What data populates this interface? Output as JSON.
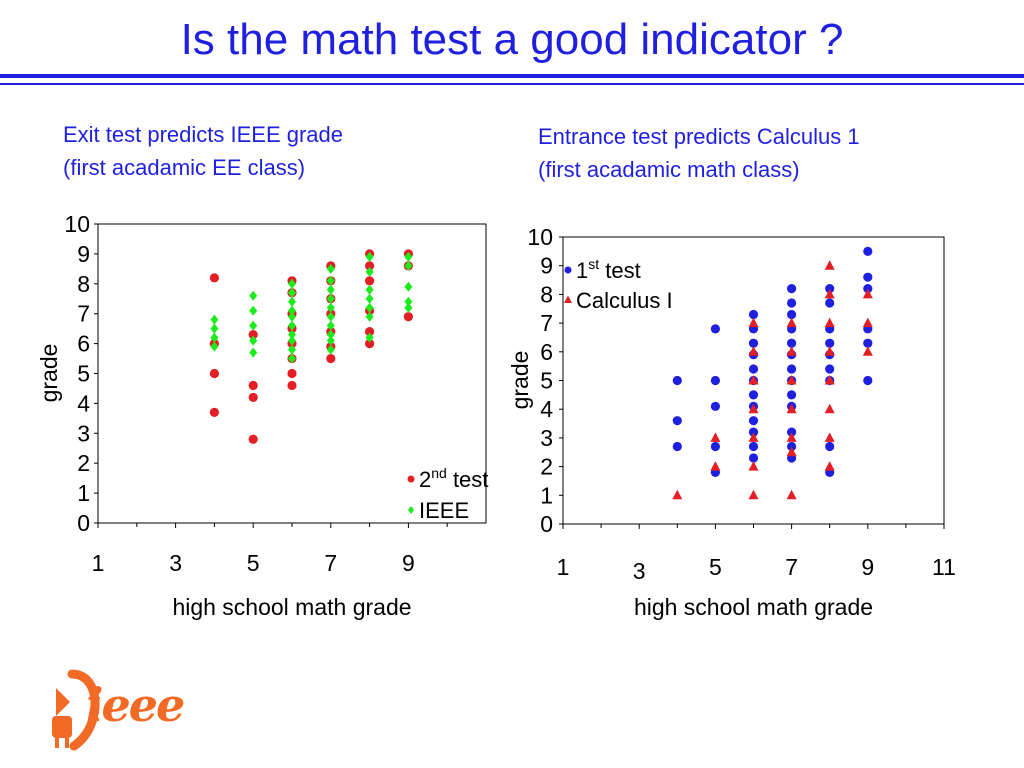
{
  "title": "Is the math test a good indicator ?",
  "subtitles": {
    "left": [
      "Exit test predicts IEEE grade",
      "(first acadamic EE class)"
    ],
    "right": [
      "Entrance test predicts Calculus 1",
      "(first acadamic math class)"
    ]
  },
  "logo_text": "ieee",
  "colors": {
    "title": "#1f1fe0",
    "red": "#e31e24",
    "green": "#1aeb1a",
    "blue": "#1f1fe0",
    "logo": "#f26a25"
  },
  "chart_data": [
    {
      "type": "scatter",
      "title": "",
      "xlabel": "high school math grade",
      "ylabel": "grade",
      "xlim": [
        1,
        11
      ],
      "ylim": [
        0,
        10
      ],
      "x_ticks": [
        "1",
        "3",
        "5",
        "7",
        "9"
      ],
      "y_ticks": [
        "0",
        "1",
        "2",
        "3",
        "4",
        "5",
        "6",
        "7",
        "8",
        "9",
        "10"
      ],
      "grid": false,
      "legend": "bottom-right",
      "series": [
        {
          "name": "2nd test",
          "name_base": "2",
          "name_sup": "nd",
          "name_rest": " test",
          "marker": "circle",
          "color": "#e31e24",
          "points": [
            [
              4,
              8.2
            ],
            [
              4,
              6.0
            ],
            [
              4,
              5.0
            ],
            [
              4,
              3.7
            ],
            [
              5,
              6.3
            ],
            [
              5,
              4.6
            ],
            [
              5,
              4.2
            ],
            [
              5,
              2.8
            ],
            [
              6,
              8.1
            ],
            [
              6,
              7.7
            ],
            [
              6,
              7.0
            ],
            [
              6,
              6.5
            ],
            [
              6,
              6.0
            ],
            [
              6,
              5.5
            ],
            [
              6,
              5.0
            ],
            [
              6,
              4.6
            ],
            [
              7,
              8.6
            ],
            [
              7,
              8.1
            ],
            [
              7,
              7.5
            ],
            [
              7,
              7.0
            ],
            [
              7,
              6.4
            ],
            [
              7,
              5.9
            ],
            [
              7,
              5.5
            ],
            [
              8,
              9.0
            ],
            [
              8,
              8.6
            ],
            [
              8,
              8.1
            ],
            [
              8,
              7.1
            ],
            [
              8,
              6.4
            ],
            [
              8,
              6.0
            ],
            [
              9,
              9.0
            ],
            [
              9,
              8.6
            ],
            [
              9,
              6.9
            ]
          ]
        },
        {
          "name": "IEEE",
          "name_base": "IEEE",
          "name_sup": "",
          "name_rest": "",
          "marker": "diamond",
          "color": "#1aeb1a",
          "points": [
            [
              4,
              6.8
            ],
            [
              4,
              6.5
            ],
            [
              4,
              6.2
            ],
            [
              4,
              5.9
            ],
            [
              5,
              7.6
            ],
            [
              5,
              7.1
            ],
            [
              5,
              6.6
            ],
            [
              5,
              6.1
            ],
            [
              5,
              5.7
            ],
            [
              6,
              8.0
            ],
            [
              6,
              7.7
            ],
            [
              6,
              7.4
            ],
            [
              6,
              7.1
            ],
            [
              6,
              6.9
            ],
            [
              6,
              6.6
            ],
            [
              6,
              6.3
            ],
            [
              6,
              6.1
            ],
            [
              6,
              5.8
            ],
            [
              6,
              5.5
            ],
            [
              7,
              8.5
            ],
            [
              7,
              8.1
            ],
            [
              7,
              7.8
            ],
            [
              7,
              7.5
            ],
            [
              7,
              7.2
            ],
            [
              7,
              6.9
            ],
            [
              7,
              6.6
            ],
            [
              7,
              6.3
            ],
            [
              7,
              6.1
            ],
            [
              7,
              5.8
            ],
            [
              8,
              8.9
            ],
            [
              8,
              8.4
            ],
            [
              8,
              7.8
            ],
            [
              8,
              7.5
            ],
            [
              8,
              7.2
            ],
            [
              8,
              6.9
            ],
            [
              8,
              6.2
            ],
            [
              9,
              8.9
            ],
            [
              9,
              8.6
            ],
            [
              9,
              7.9
            ],
            [
              9,
              7.4
            ],
            [
              9,
              7.2
            ]
          ]
        }
      ]
    },
    {
      "type": "scatter",
      "title": "",
      "xlabel": "high school math grade",
      "ylabel": "grade",
      "xlim": [
        1,
        11
      ],
      "ylim": [
        0,
        10
      ],
      "x_ticks": [
        "1",
        "3",
        "5",
        "7",
        "9",
        "11"
      ],
      "y_ticks": [
        "0",
        "1",
        "2",
        "3",
        "4",
        "5",
        "6",
        "7",
        "8",
        "9",
        "10"
      ],
      "grid": false,
      "legend": "top-left",
      "series": [
        {
          "name": "1st test",
          "name_base": "1",
          "name_sup": "st",
          "name_rest": " test",
          "marker": "circle",
          "color": "#1f1fe0",
          "points": [
            [
              4,
              5.0
            ],
            [
              4,
              3.6
            ],
            [
              4,
              2.7
            ],
            [
              5,
              6.8
            ],
            [
              5,
              5.0
            ],
            [
              5,
              4.1
            ],
            [
              5,
              2.7
            ],
            [
              5,
              1.8
            ],
            [
              6,
              7.3
            ],
            [
              6,
              6.8
            ],
            [
              6,
              6.3
            ],
            [
              6,
              5.9
            ],
            [
              6,
              5.4
            ],
            [
              6,
              5.0
            ],
            [
              6,
              4.5
            ],
            [
              6,
              4.1
            ],
            [
              6,
              3.6
            ],
            [
              6,
              3.2
            ],
            [
              6,
              2.7
            ],
            [
              6,
              2.3
            ],
            [
              7,
              8.2
            ],
            [
              7,
              7.7
            ],
            [
              7,
              7.3
            ],
            [
              7,
              6.8
            ],
            [
              7,
              6.3
            ],
            [
              7,
              5.9
            ],
            [
              7,
              5.4
            ],
            [
              7,
              5.0
            ],
            [
              7,
              4.5
            ],
            [
              7,
              4.1
            ],
            [
              7,
              3.2
            ],
            [
              7,
              2.7
            ],
            [
              7,
              2.3
            ],
            [
              8,
              8.2
            ],
            [
              8,
              7.7
            ],
            [
              8,
              6.8
            ],
            [
              8,
              6.3
            ],
            [
              8,
              5.9
            ],
            [
              8,
              5.4
            ],
            [
              8,
              5.0
            ],
            [
              8,
              2.7
            ],
            [
              8,
              1.8
            ],
            [
              9,
              9.5
            ],
            [
              9,
              8.6
            ],
            [
              9,
              8.2
            ],
            [
              9,
              6.8
            ],
            [
              9,
              6.3
            ],
            [
              9,
              5.0
            ]
          ]
        },
        {
          "name": "Calculus I",
          "name_base": "Calculus I",
          "name_sup": "",
          "name_rest": "",
          "marker": "triangle",
          "color": "#e31e24",
          "points": [
            [
              4,
              1.0
            ],
            [
              5,
              3.0
            ],
            [
              5,
              2.0
            ],
            [
              6,
              7.0
            ],
            [
              6,
              6.0
            ],
            [
              6,
              5.0
            ],
            [
              6,
              4.0
            ],
            [
              6,
              3.0
            ],
            [
              6,
              2.0
            ],
            [
              6,
              1.0
            ],
            [
              7,
              7.0
            ],
            [
              7,
              6.0
            ],
            [
              7,
              5.0
            ],
            [
              7,
              4.0
            ],
            [
              7,
              3.0
            ],
            [
              7,
              2.5
            ],
            [
              7,
              1.0
            ],
            [
              8,
              9.0
            ],
            [
              8,
              8.0
            ],
            [
              8,
              7.0
            ],
            [
              8,
              6.0
            ],
            [
              8,
              5.0
            ],
            [
              8,
              4.0
            ],
            [
              8,
              3.0
            ],
            [
              8,
              2.0
            ],
            [
              9,
              8.0
            ],
            [
              9,
              7.0
            ],
            [
              9,
              6.0
            ]
          ]
        }
      ]
    }
  ]
}
